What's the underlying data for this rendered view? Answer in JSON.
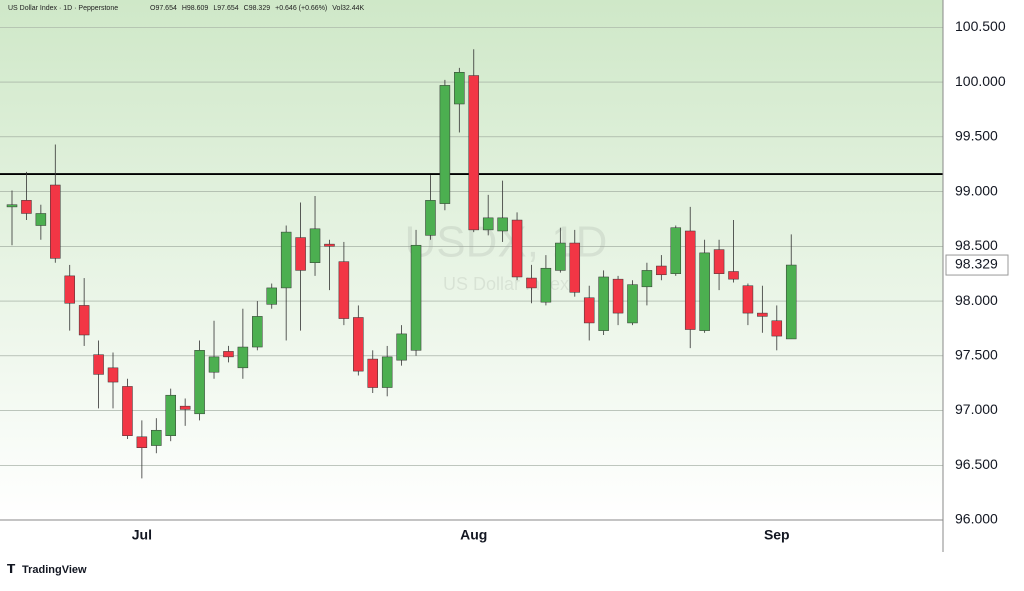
{
  "chart_data": {
    "type": "candlestick",
    "header": "US Dollar Index · 1D · Pepperstone",
    "header_values": [
      "O97.654",
      "H98.609",
      "L97.654",
      "C98.329",
      "+0.646 (+0.66%)",
      "Vol32.44K"
    ],
    "watermark": "USDX, 1D",
    "watermark_subtitle": "US Dollar Index",
    "brand": "TradingView",
    "categories": [
      null,
      null,
      null,
      null,
      null,
      null,
      null,
      null,
      null,
      "Jul",
      null,
      null,
      null,
      null,
      null,
      null,
      null,
      null,
      null,
      null,
      null,
      null,
      null,
      null,
      null,
      null,
      null,
      null,
      null,
      null,
      null,
      null,
      "Aug",
      null,
      null,
      null,
      null,
      null,
      null,
      null,
      null,
      null,
      null,
      null,
      null,
      null,
      null,
      null,
      null,
      null,
      null,
      null,
      null,
      "Sep",
      null
    ],
    "open": [
      98.86,
      98.92,
      98.69,
      99.06,
      98.23,
      97.96,
      97.51,
      97.39,
      97.22,
      96.76,
      96.68,
      96.77,
      97.04,
      96.97,
      97.35,
      97.54,
      97.39,
      97.58,
      97.97,
      98.12,
      98.58,
      98.35,
      98.52,
      98.36,
      97.85,
      97.47,
      97.21,
      97.46,
      97.55,
      98.6,
      98.89,
      99.8,
      100.06,
      98.65,
      98.64,
      98.74,
      98.21,
      97.99,
      98.28,
      98.53,
      98.03,
      97.73,
      98.2,
      97.8,
      98.13,
      98.32,
      98.25,
      98.64,
      97.73,
      98.47,
      98.27,
      98.14,
      97.89,
      97.82,
      97.654
    ],
    "high": [
      99.01,
      99.18,
      98.88,
      99.43,
      98.33,
      98.21,
      97.64,
      97.53,
      97.29,
      96.91,
      96.93,
      97.2,
      97.11,
      97.64,
      97.82,
      97.59,
      97.93,
      98.0,
      98.16,
      98.69,
      98.9,
      98.96,
      98.56,
      98.54,
      97.96,
      97.55,
      97.59,
      97.78,
      98.65,
      99.15,
      100.02,
      100.13,
      100.3,
      98.97,
      99.1,
      98.81,
      98.33,
      98.42,
      98.67,
      98.65,
      98.14,
      98.28,
      98.23,
      98.19,
      98.35,
      98.42,
      98.69,
      98.86,
      98.56,
      98.56,
      98.74,
      98.16,
      98.14,
      97.96,
      98.609
    ],
    "low": [
      98.51,
      98.74,
      98.56,
      98.35,
      97.73,
      97.59,
      97.02,
      97.02,
      96.74,
      96.38,
      96.61,
      96.72,
      96.86,
      96.91,
      97.29,
      97.44,
      97.29,
      97.55,
      97.93,
      97.64,
      97.73,
      98.23,
      98.1,
      97.78,
      97.32,
      97.16,
      97.13,
      97.41,
      97.5,
      98.56,
      98.83,
      99.54,
      98.63,
      98.6,
      98.54,
      98.19,
      97.98,
      97.96,
      98.26,
      98.04,
      97.64,
      97.69,
      97.78,
      97.78,
      97.96,
      98.19,
      98.23,
      97.57,
      97.71,
      98.1,
      98.17,
      97.78,
      97.71,
      97.55,
      97.654
    ],
    "close": [
      98.88,
      98.8,
      98.8,
      98.39,
      97.98,
      97.69,
      97.33,
      97.26,
      96.77,
      96.66,
      96.82,
      97.14,
      97.01,
      97.55,
      97.49,
      97.49,
      97.58,
      97.86,
      98.12,
      98.63,
      98.28,
      98.66,
      98.5,
      97.84,
      97.36,
      97.21,
      97.49,
      97.7,
      98.51,
      98.92,
      99.97,
      100.09,
      98.65,
      98.76,
      98.76,
      98.22,
      98.12,
      98.3,
      98.53,
      98.08,
      97.8,
      98.22,
      97.89,
      98.15,
      98.28,
      98.24,
      98.67,
      97.74,
      98.44,
      98.25,
      98.2,
      97.89,
      97.86,
      97.68,
      98.329
    ],
    "up_color": "#4caf50",
    "down_color": "#f23645",
    "ylim": [
      96,
      100.75
    ],
    "yticks": [
      {
        "value": 96,
        "label": "96.000"
      },
      {
        "value": 96.5,
        "label": "96.500"
      },
      {
        "value": 97,
        "label": "97.000"
      },
      {
        "value": 97.5,
        "label": "97.500"
      },
      {
        "value": 98,
        "label": "98.000"
      },
      {
        "value": 98.5,
        "label": "98.500"
      },
      {
        "value": 99,
        "label": "99.000"
      },
      {
        "value": 99.5,
        "label": "99.500"
      },
      {
        "value": 100,
        "label": "100.000"
      },
      {
        "value": 100.5,
        "label": "100.500"
      }
    ],
    "horizontal_line": 99.16,
    "last_price": {
      "value": 98.329,
      "label": "98.329"
    },
    "grid": true
  }
}
